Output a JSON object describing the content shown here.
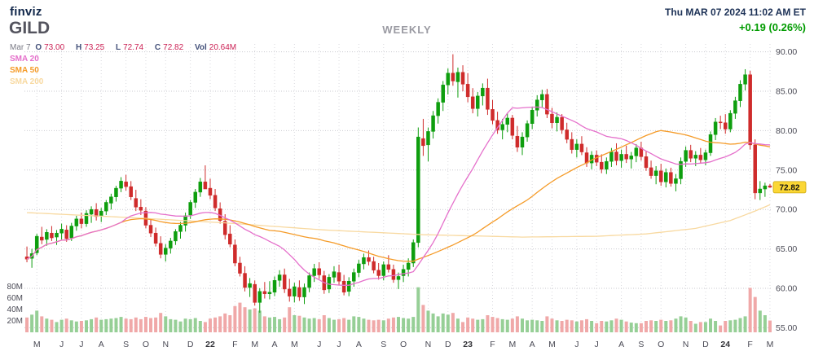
{
  "header": {
    "logo": "finviz",
    "ticker": "GILD",
    "timeframe": "WEEKLY",
    "datetime": "Thu MAR 07 2024 11:02 AM ET",
    "change": "+0.19 (0.26%)"
  },
  "overlay": {
    "date": "Mar 7",
    "o_label": "O",
    "o_value": "73.00",
    "h_label": "H",
    "h_value": "73.25",
    "l_label": "L",
    "l_value": "72.74",
    "c_label": "C",
    "c_value": "72.82",
    "vol_label": "Vol",
    "vol_value": "20.64M",
    "sma_labels": [
      "SMA 20",
      "SMA 50",
      "SMA 200"
    ]
  },
  "colors": {
    "up": "#0e9e0e",
    "down": "#cf2b2b",
    "vol_up": "#96cf96",
    "vol_down": "#f0a8a8",
    "sma20": "#e570cb",
    "sma50": "#f59b28",
    "sma200": "#f8d9a0",
    "badge_bg": "#fbd735",
    "badge_border": "#c9a40a",
    "grid": "#c9c9cf",
    "vgrid": "#d9d9de",
    "axis_text": "#4a4a55",
    "accent_green": "#009b00",
    "value_red": "#cc2255",
    "label_blue": "#44517a"
  },
  "chart_data": {
    "type": "candlestick",
    "title": "GILD weekly candlestick chart with volume and moving averages",
    "timeframe": "WEEKLY",
    "ylim": [
      54,
      91
    ],
    "volume_unit": "M",
    "series_format": [
      "open",
      "high",
      "low",
      "close",
      "volume_millions"
    ],
    "price_ticks": [
      90,
      85,
      80,
      75,
      70,
      65,
      60,
      55
    ],
    "price_tick_labels": [
      "90.00",
      "85.00",
      "80.00",
      "75.00",
      "70.00",
      "65.00",
      "60.00",
      "55.00"
    ],
    "volume_ticks": [
      [
        "80M",
        80
      ],
      [
        "60M",
        60
      ],
      [
        "40M",
        40
      ],
      [
        "20M",
        20
      ]
    ],
    "month_ticks": [
      [
        "M",
        2
      ],
      [
        "J",
        7
      ],
      [
        "J",
        11
      ],
      [
        "A",
        15
      ],
      [
        "S",
        20
      ],
      [
        "O",
        24
      ],
      [
        "N",
        28
      ],
      [
        "D",
        33
      ],
      [
        "22",
        37
      ],
      [
        "F",
        42
      ],
      [
        "M",
        46
      ],
      [
        "A",
        50
      ],
      [
        "M",
        54
      ],
      [
        "J",
        59
      ],
      [
        "J",
        63
      ],
      [
        "A",
        67
      ],
      [
        "S",
        72
      ],
      [
        "O",
        76
      ],
      [
        "N",
        81
      ],
      [
        "D",
        85
      ],
      [
        "23",
        89
      ],
      [
        "F",
        94
      ],
      [
        "M",
        98
      ],
      [
        "A",
        102
      ],
      [
        "M",
        106
      ],
      [
        "J",
        111
      ],
      [
        "J",
        115
      ],
      [
        "A",
        120
      ],
      [
        "S",
        124
      ],
      [
        "O",
        128
      ],
      [
        "N",
        133
      ],
      [
        "D",
        137
      ],
      [
        "24",
        141
      ],
      [
        "F",
        146
      ],
      [
        "M",
        150
      ]
    ],
    "last_price": 72.82,
    "last_price_label": "72.82",
    "sma_windows": {
      "sma20": 20,
      "sma50": 50
    },
    "sma200_points": [
      [
        0,
        69.6
      ],
      [
        20,
        69.0
      ],
      [
        40,
        68.3
      ],
      [
        60,
        67.4
      ],
      [
        80,
        66.8
      ],
      [
        100,
        66.5
      ],
      [
        115,
        66.6
      ],
      [
        125,
        66.9
      ],
      [
        135,
        67.6
      ],
      [
        142,
        68.6
      ],
      [
        147,
        69.8
      ],
      [
        150,
        70.6
      ]
    ],
    "candles": [
      [
        64.0,
        65.3,
        63.3,
        63.7,
        26
      ],
      [
        63.8,
        65.0,
        62.6,
        64.4,
        31
      ],
      [
        64.5,
        66.9,
        64.2,
        66.6,
        38
      ],
      [
        66.5,
        67.8,
        65.6,
        66.1,
        28
      ],
      [
        66.2,
        67.5,
        65.4,
        67.1,
        24
      ],
      [
        67.0,
        67.9,
        66.0,
        66.4,
        22
      ],
      [
        66.5,
        67.4,
        65.5,
        67.0,
        18
      ],
      [
        67.0,
        68.2,
        66.2,
        67.5,
        22
      ],
      [
        67.4,
        68.0,
        65.9,
        66.3,
        24
      ],
      [
        66.4,
        68.3,
        66.0,
        67.9,
        21
      ],
      [
        67.9,
        69.2,
        67.3,
        68.8,
        19
      ],
      [
        68.8,
        69.6,
        67.6,
        68.2,
        20
      ],
      [
        68.2,
        69.9,
        67.8,
        69.5,
        21
      ],
      [
        69.4,
        70.4,
        68.3,
        70.0,
        23
      ],
      [
        70.0,
        70.8,
        68.6,
        69.1,
        26
      ],
      [
        69.2,
        70.2,
        68.4,
        69.8,
        22
      ],
      [
        69.8,
        71.2,
        69.3,
        70.9,
        23
      ],
      [
        70.8,
        72.0,
        70.0,
        71.6,
        24
      ],
      [
        71.6,
        73.0,
        71.0,
        72.7,
        25
      ],
      [
        72.7,
        74.1,
        72.2,
        73.6,
        27
      ],
      [
        73.5,
        74.4,
        72.4,
        72.9,
        24
      ],
      [
        72.9,
        73.6,
        71.2,
        71.6,
        23
      ],
      [
        71.4,
        72.5,
        69.8,
        70.3,
        26
      ],
      [
        70.3,
        71.3,
        69.3,
        69.9,
        23
      ],
      [
        69.8,
        70.3,
        67.6,
        68.0,
        27
      ],
      [
        68.0,
        68.8,
        66.5,
        67.0,
        25
      ],
      [
        67.0,
        67.7,
        65.3,
        65.7,
        26
      ],
      [
        65.7,
        66.6,
        63.8,
        64.3,
        34
      ],
      [
        64.3,
        65.6,
        63.4,
        65.1,
        28
      ],
      [
        65.1,
        66.4,
        64.4,
        66.0,
        23
      ],
      [
        66.0,
        67.5,
        65.5,
        67.2,
        22
      ],
      [
        67.2,
        68.4,
        66.3,
        68.0,
        19
      ],
      [
        68.0,
        69.6,
        67.2,
        69.2,
        24
      ],
      [
        69.3,
        71.2,
        68.8,
        70.9,
        23
      ],
      [
        70.9,
        72.6,
        70.2,
        72.2,
        25
      ],
      [
        72.2,
        74.0,
        71.6,
        73.5,
        20
      ],
      [
        73.5,
        75.6,
        72.9,
        72.6,
        18
      ],
      [
        72.7,
        73.9,
        71.3,
        71.8,
        24
      ],
      [
        71.8,
        72.6,
        69.8,
        70.2,
        26
      ],
      [
        70.1,
        70.9,
        68.2,
        68.6,
        28
      ],
      [
        68.5,
        69.4,
        66.2,
        66.8,
        33
      ],
      [
        66.9,
        68.0,
        65.2,
        65.6,
        30
      ],
      [
        65.5,
        66.2,
        62.8,
        63.2,
        46
      ],
      [
        63.2,
        64.0,
        61.5,
        61.9,
        52
      ],
      [
        61.9,
        62.8,
        59.6,
        60.1,
        44
      ],
      [
        60.1,
        61.3,
        58.9,
        60.6,
        40
      ],
      [
        60.5,
        61.0,
        57.8,
        58.2,
        42
      ],
      [
        58.2,
        60.0,
        56.9,
        59.6,
        38
      ],
      [
        59.6,
        60.8,
        58.7,
        59.3,
        28
      ],
      [
        59.3,
        60.9,
        58.6,
        59.5,
        26
      ],
      [
        59.5,
        61.5,
        59.0,
        61.0,
        27
      ],
      [
        61.0,
        62.3,
        60.2,
        61.7,
        23
      ],
      [
        61.7,
        62.5,
        59.4,
        59.9,
        26
      ],
      [
        59.9,
        61.2,
        58.3,
        59.0,
        44
      ],
      [
        59.0,
        60.7,
        58.2,
        60.2,
        30
      ],
      [
        60.1,
        61.0,
        58.4,
        58.9,
        29
      ],
      [
        58.9,
        60.6,
        58.0,
        60.1,
        26
      ],
      [
        60.1,
        62.0,
        59.5,
        61.6,
        24
      ],
      [
        61.6,
        63.1,
        60.8,
        62.5,
        25
      ],
      [
        62.5,
        63.3,
        61.2,
        61.7,
        23
      ],
      [
        61.6,
        62.2,
        59.3,
        59.8,
        30
      ],
      [
        59.9,
        61.8,
        59.4,
        61.4,
        25
      ],
      [
        61.4,
        62.8,
        60.7,
        62.1,
        22
      ],
      [
        62.0,
        63.0,
        60.4,
        60.9,
        23
      ],
      [
        60.9,
        61.7,
        59.1,
        59.5,
        25
      ],
      [
        59.6,
        61.4,
        59.0,
        60.9,
        22
      ],
      [
        60.9,
        62.5,
        60.2,
        62.0,
        28
      ],
      [
        62.0,
        63.6,
        61.4,
        63.1,
        27
      ],
      [
        63.1,
        64.4,
        62.4,
        63.9,
        24
      ],
      [
        63.9,
        64.8,
        62.9,
        63.4,
        22
      ],
      [
        63.4,
        64.0,
        61.9,
        62.3,
        21
      ],
      [
        62.3,
        63.2,
        61.1,
        61.6,
        22
      ],
      [
        61.6,
        63.4,
        61.0,
        63.0,
        21
      ],
      [
        63.0,
        64.2,
        62.0,
        62.4,
        24
      ],
      [
        62.4,
        63.0,
        60.7,
        61.1,
        26
      ],
      [
        61.1,
        62.0,
        59.9,
        61.5,
        27
      ],
      [
        61.6,
        63.0,
        60.8,
        62.4,
        25
      ],
      [
        62.4,
        63.8,
        61.5,
        63.2,
        24
      ],
      [
        63.2,
        66.2,
        62.7,
        65.8,
        27
      ],
      [
        65.8,
        80.4,
        65.2,
        79.2,
        79
      ],
      [
        79.0,
        81.5,
        76.8,
        78.1,
        48
      ],
      [
        78.2,
        80.4,
        76.1,
        79.9,
        38
      ],
      [
        79.9,
        82.5,
        79.0,
        81.9,
        33
      ],
      [
        81.9,
        84.1,
        80.9,
        83.6,
        28
      ],
      [
        83.6,
        86.3,
        82.5,
        85.8,
        33
      ],
      [
        85.8,
        87.9,
        84.6,
        87.3,
        31
      ],
      [
        87.3,
        89.7,
        85.7,
        86.3,
        34
      ],
      [
        86.2,
        88.0,
        84.2,
        87.4,
        24
      ],
      [
        87.4,
        88.3,
        85.0,
        85.9,
        18
      ],
      [
        85.9,
        87.3,
        83.6,
        84.3,
        26
      ],
      [
        84.3,
        85.4,
        82.2,
        82.8,
        24
      ],
      [
        82.8,
        84.9,
        81.8,
        84.4,
        22
      ],
      [
        84.4,
        86.0,
        83.2,
        85.4,
        23
      ],
      [
        85.4,
        86.6,
        82.0,
        82.7,
        30
      ],
      [
        82.7,
        83.9,
        80.8,
        81.3,
        27
      ],
      [
        81.3,
        82.4,
        79.6,
        80.1,
        25
      ],
      [
        80.1,
        81.5,
        78.9,
        80.8,
        23
      ],
      [
        80.8,
        82.2,
        79.8,
        81.6,
        22
      ],
      [
        81.6,
        82.0,
        78.9,
        79.4,
        24
      ],
      [
        79.3,
        80.6,
        77.3,
        77.9,
        28
      ],
      [
        77.9,
        79.8,
        76.9,
        79.2,
        24
      ],
      [
        79.2,
        81.3,
        78.6,
        80.9,
        21
      ],
      [
        80.9,
        83.0,
        80.2,
        82.6,
        22
      ],
      [
        82.6,
        84.5,
        81.8,
        83.9,
        21
      ],
      [
        83.9,
        85.2,
        82.9,
        84.6,
        20
      ],
      [
        84.6,
        85.3,
        81.6,
        82.1,
        28
      ],
      [
        82.1,
        82.9,
        80.3,
        81.0,
        24
      ],
      [
        81.0,
        82.3,
        79.9,
        81.7,
        21
      ],
      [
        81.7,
        82.1,
        79.6,
        80.1,
        20
      ],
      [
        80.1,
        81.0,
        78.4,
        78.9,
        22
      ],
      [
        78.9,
        79.8,
        77.1,
        77.6,
        21
      ],
      [
        77.6,
        78.9,
        76.6,
        78.3,
        19
      ],
      [
        78.3,
        79.3,
        76.9,
        77.3,
        21
      ],
      [
        77.2,
        77.9,
        75.4,
        75.9,
        23
      ],
      [
        75.9,
        77.4,
        75.1,
        76.9,
        20
      ],
      [
        76.9,
        77.5,
        75.5,
        76.0,
        16
      ],
      [
        76.0,
        77.0,
        74.6,
        75.1,
        20
      ],
      [
        75.1,
        76.6,
        74.5,
        76.1,
        19
      ],
      [
        76.1,
        77.8,
        75.4,
        77.3,
        21
      ],
      [
        77.3,
        78.4,
        75.6,
        76.2,
        24
      ],
      [
        76.2,
        77.6,
        75.3,
        77.0,
        22
      ],
      [
        77.0,
        78.1,
        75.9,
        76.4,
        19
      ],
      [
        76.4,
        77.3,
        75.2,
        76.8,
        17
      ],
      [
        76.8,
        78.3,
        76.0,
        77.8,
        16
      ],
      [
        77.8,
        78.6,
        76.2,
        76.7,
        16
      ],
      [
        76.7,
        77.4,
        74.9,
        75.3,
        20
      ],
      [
        75.3,
        76.2,
        73.9,
        74.3,
        21
      ],
      [
        74.3,
        75.5,
        73.2,
        74.9,
        20
      ],
      [
        74.9,
        75.8,
        73.0,
        73.5,
        22
      ],
      [
        73.5,
        75.2,
        72.8,
        74.7,
        20
      ],
      [
        74.7,
        75.3,
        72.9,
        73.3,
        21
      ],
      [
        73.3,
        74.5,
        72.3,
        73.9,
        24
      ],
      [
        73.9,
        76.6,
        73.2,
        76.1,
        28
      ],
      [
        76.1,
        78.0,
        75.4,
        77.5,
        26
      ],
      [
        77.5,
        78.2,
        76.0,
        76.5,
        20
      ],
      [
        76.5,
        77.4,
        75.5,
        76.9,
        15
      ],
      [
        76.9,
        77.8,
        75.8,
        76.3,
        18
      ],
      [
        76.3,
        77.6,
        75.6,
        77.2,
        18
      ],
      [
        77.2,
        79.9,
        76.8,
        79.5,
        24
      ],
      [
        79.5,
        81.6,
        78.8,
        81.1,
        20
      ],
      [
        81.1,
        81.9,
        80.2,
        81.0,
        12
      ],
      [
        81.0,
        82.1,
        79.6,
        80.2,
        20
      ],
      [
        80.2,
        82.6,
        79.8,
        82.2,
        21
      ],
      [
        82.2,
        84.3,
        81.5,
        83.8,
        22
      ],
      [
        83.8,
        86.4,
        83.0,
        85.9,
        25
      ],
      [
        85.9,
        87.8,
        85.1,
        87.1,
        28
      ],
      [
        87.1,
        87.6,
        77.6,
        78.2,
        78
      ],
      [
        78.2,
        78.9,
        71.3,
        72.1,
        62
      ],
      [
        72.1,
        73.6,
        71.2,
        72.6,
        38
      ],
      [
        72.6,
        73.4,
        71.6,
        73.0,
        30
      ],
      [
        73.0,
        73.25,
        72.74,
        72.82,
        20.64
      ]
    ]
  }
}
